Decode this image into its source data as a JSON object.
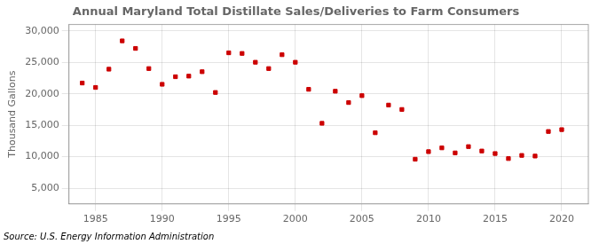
{
  "chart_data": {
    "type": "scatter",
    "title": "Annual Maryland Total Distillate Sales/Deliveries to Farm Consumers",
    "ylabel": "Thousand Gallons",
    "annotations": [
      "Source: U.S. Energy Information Administration"
    ],
    "x": [
      1984,
      1985,
      1986,
      1987,
      1988,
      1989,
      1990,
      1991,
      1992,
      1993,
      1994,
      1995,
      1996,
      1997,
      1998,
      1999,
      2000,
      2001,
      2002,
      2003,
      2004,
      2005,
      2006,
      2007,
      2008,
      2009,
      2010,
      2011,
      2012,
      2013,
      2014,
      2015,
      2016,
      2017,
      2018,
      2019,
      2020
    ],
    "values": [
      21700,
      21000,
      23900,
      28400,
      27200,
      24000,
      21500,
      22700,
      22800,
      23500,
      20200,
      26500,
      26400,
      25000,
      24000,
      26200,
      25000,
      20700,
      15300,
      20400,
      18600,
      19700,
      13800,
      18200,
      17500,
      9600,
      10800,
      11400,
      10600,
      11600,
      10900,
      10500,
      9700,
      10200,
      10100,
      14000,
      14300
    ],
    "color": "#cc0000",
    "marker": "square",
    "xlim": [
      1983,
      2022
    ],
    "ylim": [
      2500,
      31000
    ],
    "xticks": [
      1985,
      1990,
      1995,
      2000,
      2005,
      2010,
      2015,
      2020
    ],
    "yticks": [
      {
        "value": 5000,
        "label": "5,000"
      },
      {
        "value": 10000,
        "label": "10,000"
      },
      {
        "value": 15000,
        "label": "15,000"
      },
      {
        "value": 20000,
        "label": "20,000"
      },
      {
        "value": 25000,
        "label": "25,000"
      },
      {
        "value": 30000,
        "label": "30,000"
      }
    ],
    "grid": true
  }
}
